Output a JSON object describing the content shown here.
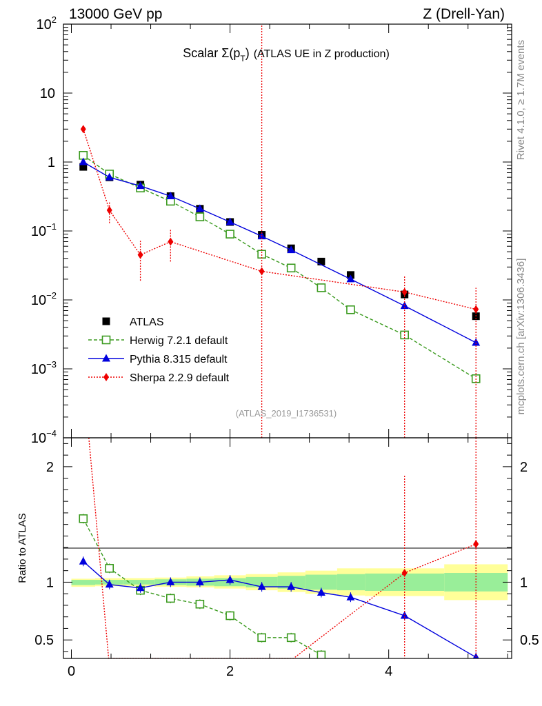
{
  "header": {
    "left": "13000 GeV pp",
    "right": "Z (Drell-Yan)"
  },
  "side_labels": {
    "rivet": "Rivet 4.1.0, ≥ 1.7M events",
    "mcplots": "mcplots.cern.ch [arXiv:1306.3436]"
  },
  "chart_data": [
    {
      "panel": "main",
      "type": "scatter",
      "title": "Scalar Σ(p_T) (ATLAS UE in Z production)",
      "title_main": "Scalar ",
      "title_sigma": "Σ(p",
      "title_sub": "T",
      "title_close": ")",
      "title_rest": "(ATLAS UE in Z production)",
      "watermark": "(ATLAS_2019_I1736531)",
      "yscale": "log",
      "ylim": [
        0.0001,
        100
      ],
      "xlim": [
        -0.1,
        5.55
      ],
      "y_ticks": [
        {
          "value": 100,
          "base": "10",
          "exp": "2"
        },
        {
          "value": 10,
          "base": "10",
          "exp": ""
        },
        {
          "value": 1,
          "base": "1",
          "exp": ""
        },
        {
          "value": 0.1,
          "base": "10",
          "exp": "−1"
        },
        {
          "value": 0.01,
          "base": "10",
          "exp": "−2"
        },
        {
          "value": 0.001,
          "base": "10",
          "exp": "−3"
        },
        {
          "value": 0.0001,
          "base": "10",
          "exp": "−4"
        }
      ],
      "legend": {
        "position": "lower-left",
        "entries": [
          {
            "label": "ATLAS",
            "color": "#000000",
            "marker": "square-filled",
            "line": "none"
          },
          {
            "label": "Herwig 7.2.1 default",
            "color": "#3a9a1e",
            "marker": "square-open",
            "line": "dashed"
          },
          {
            "label": "Pythia 8.315 default",
            "color": "#0000dd",
            "marker": "triangle",
            "line": "solid"
          },
          {
            "label": "Sherpa 2.2.9 default",
            "color": "#ee0000",
            "marker": "diamond",
            "line": "dotted"
          }
        ]
      },
      "series": [
        {
          "name": "ATLAS",
          "x": [
            0.15,
            0.48,
            0.87,
            1.25,
            1.62,
            2.0,
            2.4,
            2.77,
            3.15,
            3.52,
            4.2,
            5.1
          ],
          "y": [
            0.85,
            0.6,
            0.47,
            0.32,
            0.21,
            0.135,
            0.088,
            0.056,
            0.036,
            0.023,
            0.012,
            0.0058
          ]
        },
        {
          "name": "Herwig 7.2.1 default",
          "x": [
            0.15,
            0.48,
            0.87,
            1.25,
            1.62,
            2.0,
            2.4,
            2.77,
            3.15,
            3.52,
            4.2,
            5.1
          ],
          "y": [
            1.25,
            0.67,
            0.42,
            0.27,
            0.16,
            0.09,
            0.046,
            0.029,
            0.015,
            0.0072,
            0.0031,
            0.00072
          ]
        },
        {
          "name": "Pythia 8.315 default",
          "x": [
            0.15,
            0.48,
            0.87,
            1.25,
            1.62,
            2.0,
            2.4,
            2.77,
            3.52,
            4.2,
            5.1
          ],
          "y": [
            1.0,
            0.6,
            0.45,
            0.32,
            0.21,
            0.135,
            0.084,
            0.053,
            0.02,
            0.0082,
            0.0024
          ]
        },
        {
          "name": "Sherpa 2.2.9 default",
          "x": [
            0.15,
            0.48,
            0.87,
            1.25,
            2.4,
            4.2,
            5.1
          ],
          "y": [
            3.0,
            0.2,
            0.045,
            0.07,
            0.026,
            0.013,
            0.0073
          ],
          "err_low": [
            null,
            0.13,
            0.019,
            0.036,
            0.0001,
            0.0001,
            0.0001
          ],
          "err_high": [
            null,
            0.26,
            0.072,
            0.105,
            null,
            0.022,
            0.015
          ]
        }
      ]
    },
    {
      "panel": "ratio",
      "type": "scatter",
      "ylabel": "Ratio to ATLAS",
      "xlim": [
        -0.1,
        5.55
      ],
      "ylim": [
        0.34,
        2.25
      ],
      "x_ticks": [
        0,
        2,
        4
      ],
      "y_ticks": [
        0.5,
        1,
        2
      ],
      "bands": {
        "edges": [
          0.0,
          0.3,
          0.65,
          1.05,
          1.45,
          1.8,
          2.2,
          2.6,
          2.95,
          3.35,
          3.7,
          4.7,
          5.5
        ],
        "yellow_low": [
          0.96,
          0.965,
          0.965,
          0.96,
          0.955,
          0.945,
          0.93,
          0.915,
          0.9,
          0.885,
          0.88,
          0.845
        ],
        "yellow_high": [
          1.03,
          1.035,
          1.035,
          1.04,
          1.05,
          1.06,
          1.07,
          1.085,
          1.1,
          1.12,
          1.12,
          1.155
        ],
        "green_low": [
          0.975,
          0.98,
          0.98,
          0.975,
          0.97,
          0.965,
          0.955,
          0.945,
          0.935,
          0.93,
          0.925,
          0.92
        ],
        "green_high": [
          1.02,
          1.02,
          1.02,
          1.025,
          1.03,
          1.035,
          1.045,
          1.055,
          1.065,
          1.07,
          1.075,
          1.08
        ]
      },
      "series": [
        {
          "name": "Herwig 7.2.1 default",
          "x": [
            0.15,
            0.48,
            0.87,
            1.25,
            1.62,
            2.0,
            2.4,
            2.77,
            3.15
          ],
          "y": [
            1.55,
            1.12,
            0.93,
            0.86,
            0.81,
            0.71,
            0.52,
            0.52,
            0.37
          ]
        },
        {
          "name": "Pythia 8.315 default",
          "x": [
            0.15,
            0.48,
            0.87,
            1.25,
            1.62,
            2.0,
            2.4,
            2.77,
            3.15,
            3.52,
            4.2,
            5.1
          ],
          "y": [
            1.18,
            0.98,
            0.95,
            1.0,
            1.0,
            1.02,
            0.96,
            0.96,
            0.91,
            0.87,
            0.71,
            0.35
          ]
        },
        {
          "name": "Sherpa 2.2.9 default",
          "x": [
            0.22,
            0.47,
            2.8,
            4.2,
            5.1
          ],
          "y": [
            2.25,
            0.34,
            0.34,
            1.08,
            1.33
          ]
        }
      ]
    }
  ]
}
